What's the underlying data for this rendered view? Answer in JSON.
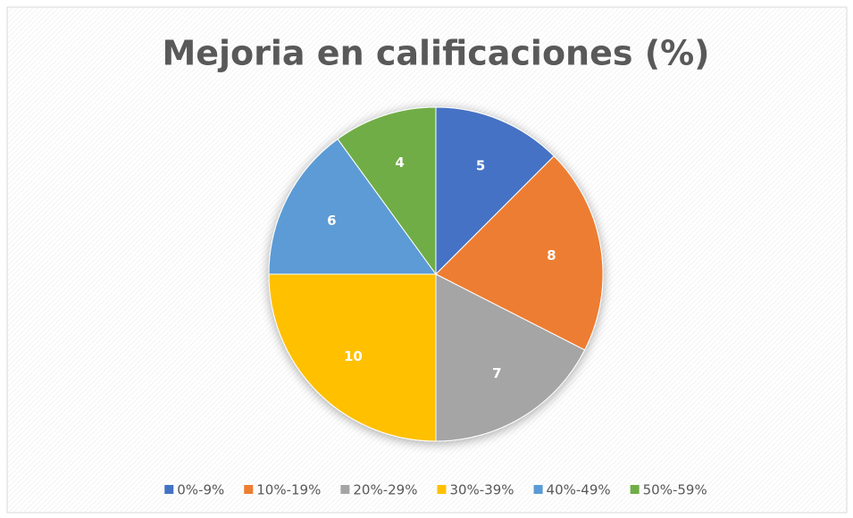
{
  "chart_data": {
    "type": "pie",
    "title": "Mejoria en calificaciones (%)",
    "categories": [
      "0%-9%",
      "10%-19%",
      "20%-29%",
      "30%-39%",
      "40%-49%",
      "50%-59%"
    ],
    "values": [
      5,
      8,
      7,
      10,
      6,
      4
    ],
    "colors": [
      "#4472c4",
      "#ed7d31",
      "#a5a5a5",
      "#ffc000",
      "#5b9bd5",
      "#70ad47"
    ],
    "legend": "bottom"
  }
}
